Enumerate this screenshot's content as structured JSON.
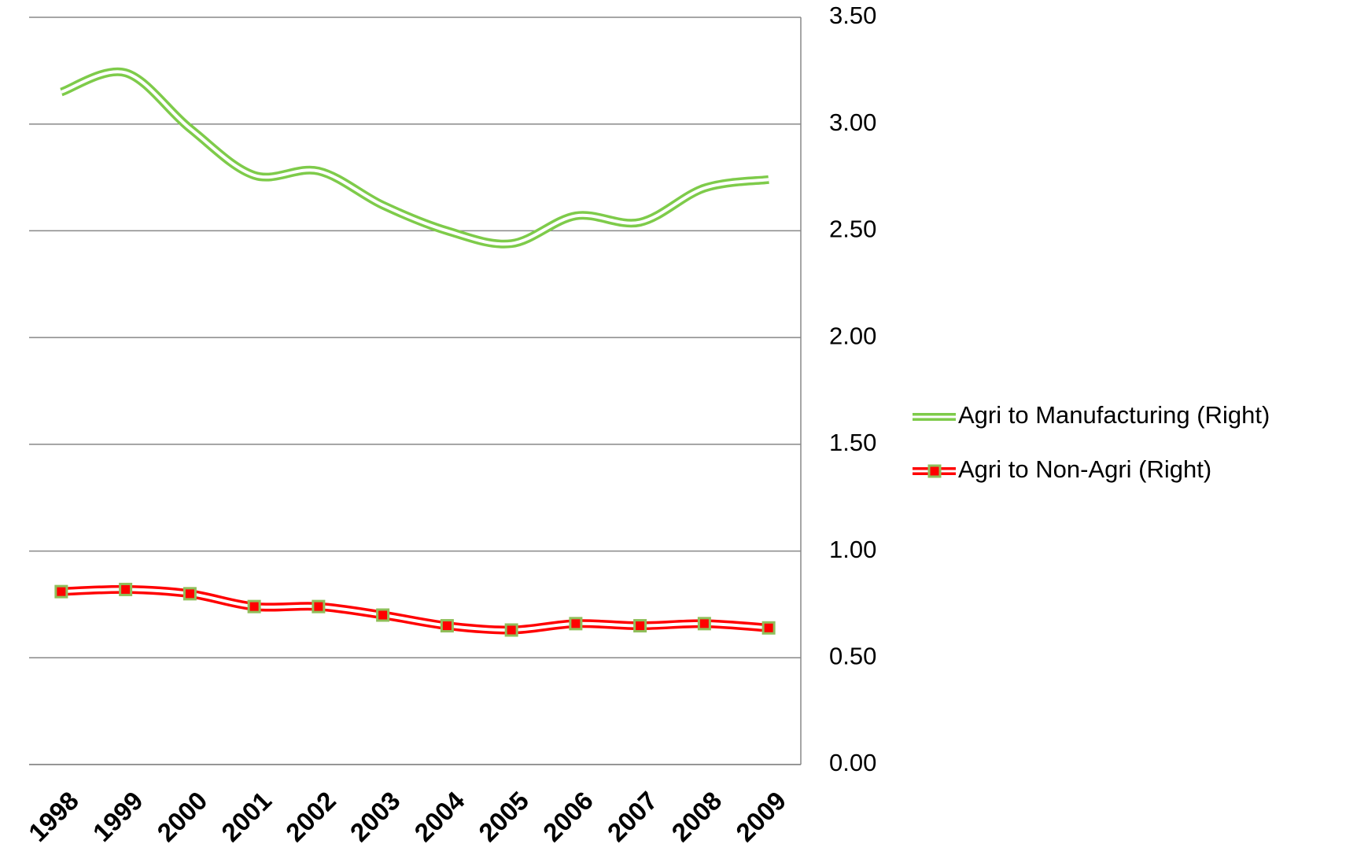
{
  "chart_data": {
    "type": "line",
    "categories": [
      "1998",
      "1999",
      "2000",
      "2001",
      "2002",
      "2003",
      "2004",
      "2005",
      "2006",
      "2007",
      "2008",
      "2009"
    ],
    "series": [
      {
        "name": "Agri to Manufacturing (Right)",
        "color": "#7ecb4a",
        "marker": false,
        "values": [
          3.15,
          3.24,
          2.98,
          2.76,
          2.78,
          2.62,
          2.5,
          2.44,
          2.57,
          2.54,
          2.7,
          2.74
        ]
      },
      {
        "name": "Agri to Non-Agri (Right)",
        "color": "#ff0000",
        "marker": true,
        "values": [
          0.81,
          0.82,
          0.8,
          0.74,
          0.74,
          0.7,
          0.65,
          0.63,
          0.66,
          0.65,
          0.66,
          0.64
        ]
      }
    ],
    "ylim": [
      0,
      3.5
    ],
    "yticks": [
      {
        "value": 0,
        "label": "0.00"
      },
      {
        "value": 0.5,
        "label": "0.50"
      },
      {
        "value": 1,
        "label": "1.00"
      },
      {
        "value": 1.5,
        "label": "1.50"
      },
      {
        "value": 2,
        "label": "2.00"
      },
      {
        "value": 2.5,
        "label": "2.50"
      },
      {
        "value": 3,
        "label": "3.00"
      },
      {
        "value": 3.5,
        "label": "3.50"
      }
    ],
    "grid": true,
    "legend": "right"
  }
}
